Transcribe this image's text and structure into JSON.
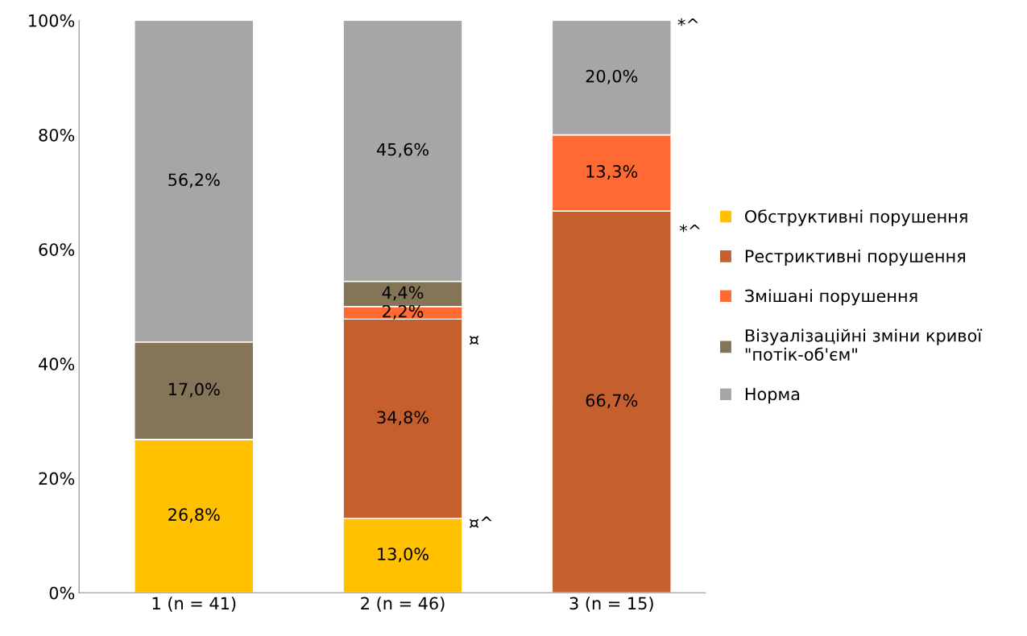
{
  "chart_data": {
    "type": "bar",
    "stacked": true,
    "categories": [
      "1 (n = 41)",
      "2 (n = 46)",
      "3 (n = 15)"
    ],
    "series": [
      {
        "name": "Обструктивні порушення",
        "color": "#ffc000",
        "values": [
          26.8,
          13.0,
          0
        ],
        "value_labels": [
          "26,8%",
          "13,0%",
          null
        ]
      },
      {
        "name": "Рестриктивні порушення",
        "color": "#c65f2e",
        "values": [
          0,
          34.8,
          66.7
        ],
        "value_labels": [
          null,
          "34,8%",
          "66,7%"
        ]
      },
      {
        "name": "Змішані порушення",
        "color": "#ff6a33",
        "values": [
          0,
          2.2,
          13.3
        ],
        "value_labels": [
          null,
          "2,2%",
          "13,3%"
        ]
      },
      {
        "name": "Візуалізаційні зміни кривої\n\"потік-об'єм\"",
        "color": "#857558",
        "values": [
          17.0,
          4.4,
          0
        ],
        "value_labels": [
          "17,0%",
          "4,4%",
          null
        ]
      },
      {
        "name": "Норма",
        "color": "#a6a6a6",
        "values": [
          56.2,
          45.6,
          20.0
        ],
        "value_labels": [
          "56,2%",
          "45,6%",
          "20,0%"
        ]
      }
    ],
    "ylim": [
      0,
      100
    ],
    "yticks": [
      {
        "value": 0,
        "label": "0%"
      },
      {
        "value": 20,
        "label": "20%"
      },
      {
        "value": 40,
        "label": "40%"
      },
      {
        "value": 60,
        "label": "60%"
      },
      {
        "value": 80,
        "label": "80%"
      },
      {
        "value": 100,
        "label": "100%"
      }
    ],
    "grid": false,
    "legend": "right",
    "annotations": [
      "¤",
      "¤^",
      "*^",
      "*^"
    ]
  }
}
